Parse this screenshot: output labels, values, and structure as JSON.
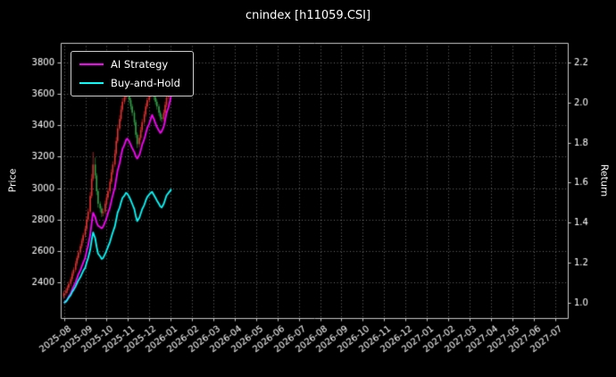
{
  "chart_data": {
    "type": "candlestick",
    "title": "cnindex [h11059.CSI]",
    "ylabel_left": "Price",
    "ylabel_right": "Return",
    "background": "#000000",
    "text_color": "#ffffff",
    "spine_color": "#c8c8c8",
    "grid": {
      "on": true,
      "style": "dotted",
      "color": "rgba(255,255,255,0.42)"
    },
    "legend_position": "upper left",
    "x_axis": {
      "unit": "months since 2025-08",
      "range": [
        -0.15,
        23.6
      ],
      "tick_labels": [
        "2025-08",
        "2025-09",
        "2025-10",
        "2025-11",
        "2025-12",
        "2026-01",
        "2026-02",
        "2026-03",
        "2026-04",
        "2026-05",
        "2026-06",
        "2026-07",
        "2026-08",
        "2026-09",
        "2026-10",
        "2026-11",
        "2026-12",
        "2027-01",
        "2027-02",
        "2027-03",
        "2027-04",
        "2027-05",
        "2027-06",
        "2027-07"
      ]
    },
    "price_axis": {
      "range": [
        2172,
        3925
      ],
      "ticks": [
        2400,
        2600,
        2800,
        3000,
        3200,
        3400,
        3600,
        3800
      ]
    },
    "return_axis": {
      "range": [
        0.924,
        2.298
      ],
      "ticks": [
        1.0,
        1.2,
        1.4,
        1.6,
        1.8,
        2.0,
        2.2
      ]
    },
    "initial_price": 2330,
    "candles": {
      "up_color": "#e03131",
      "down_color": "#2f9e44",
      "dates": [
        "2025-08-01",
        "2025-08-04",
        "2025-08-06",
        "2025-08-08",
        "2025-08-11",
        "2025-08-13",
        "2025-08-15",
        "2025-08-18",
        "2025-08-20",
        "2025-08-22",
        "2025-08-25",
        "2025-08-27",
        "2025-08-29",
        "2025-09-01",
        "2025-09-03",
        "2025-09-05",
        "2025-09-08",
        "2025-09-10",
        "2025-09-12",
        "2025-09-15",
        "2025-09-17",
        "2025-09-19",
        "2025-09-22",
        "2025-09-24",
        "2025-09-26",
        "2025-09-29",
        "2025-10-01",
        "2025-10-03",
        "2025-10-06",
        "2025-10-08",
        "2025-10-10",
        "2025-10-13",
        "2025-10-15",
        "2025-10-17",
        "2025-10-20",
        "2025-10-22",
        "2025-10-24",
        "2025-10-27",
        "2025-10-29",
        "2025-10-31",
        "2025-11-03",
        "2025-11-05",
        "2025-11-07",
        "2025-11-10",
        "2025-11-12",
        "2025-11-14",
        "2025-11-17",
        "2025-11-19",
        "2025-11-21",
        "2025-11-24",
        "2025-11-26",
        "2025-11-28",
        "2025-12-01",
        "2025-12-03",
        "2025-12-05",
        "2025-12-08",
        "2025-12-10",
        "2025-12-12",
        "2025-12-15",
        "2025-12-17",
        "2025-12-19",
        "2025-12-22",
        "2025-12-24",
        "2025-12-26",
        "2025-12-29",
        "2025-12-31",
        "2026-01-02"
      ],
      "ohlc": [
        [
          2310,
          2345,
          2295,
          2330
        ],
        [
          2330,
          2360,
          2315,
          2345
        ],
        [
          2345,
          2380,
          2330,
          2365
        ],
        [
          2365,
          2405,
          2350,
          2390
        ],
        [
          2390,
          2435,
          2375,
          2420
        ],
        [
          2420,
          2470,
          2405,
          2455
        ],
        [
          2455,
          2495,
          2440,
          2480
        ],
        [
          2480,
          2535,
          2465,
          2520
        ],
        [
          2520,
          2570,
          2505,
          2555
        ],
        [
          2555,
          2605,
          2540,
          2590
        ],
        [
          2590,
          2645,
          2575,
          2630
        ],
        [
          2630,
          2680,
          2615,
          2665
        ],
        [
          2665,
          2715,
          2650,
          2700
        ],
        [
          2700,
          2760,
          2685,
          2740
        ],
        [
          2740,
          2820,
          2725,
          2800
        ],
        [
          2800,
          2870,
          2785,
          2850
        ],
        [
          2850,
          2975,
          2835,
          2950
        ],
        [
          2950,
          3090,
          2935,
          3060
        ],
        [
          3060,
          3230,
          3045,
          3150
        ],
        [
          3150,
          3195,
          3060,
          3080
        ],
        [
          3080,
          3095,
          2955,
          2980
        ],
        [
          2980,
          2995,
          2875,
          2900
        ],
        [
          2900,
          2915,
          2845,
          2870
        ],
        [
          2870,
          2885,
          2815,
          2840
        ],
        [
          2840,
          2870,
          2820,
          2850
        ],
        [
          2850,
          2920,
          2835,
          2900
        ],
        [
          2900,
          2960,
          2885,
          2940
        ],
        [
          2940,
          3000,
          2925,
          2980
        ],
        [
          2980,
          3060,
          2965,
          3040
        ],
        [
          3040,
          3120,
          3025,
          3100
        ],
        [
          3100,
          3170,
          3085,
          3150
        ],
        [
          3150,
          3245,
          3135,
          3220
        ],
        [
          3220,
          3325,
          3205,
          3300
        ],
        [
          3300,
          3405,
          3285,
          3380
        ],
        [
          3380,
          3465,
          3365,
          3440
        ],
        [
          3440,
          3525,
          3425,
          3500
        ],
        [
          3500,
          3575,
          3485,
          3550
        ],
        [
          3550,
          3600,
          3535,
          3580
        ],
        [
          3580,
          3640,
          3565,
          3610
        ],
        [
          3610,
          3630,
          3580,
          3600
        ],
        [
          3600,
          3615,
          3540,
          3560
        ],
        [
          3560,
          3575,
          3500,
          3520
        ],
        [
          3520,
          3535,
          3460,
          3480
        ],
        [
          3480,
          3495,
          3400,
          3420
        ],
        [
          3420,
          3435,
          3320,
          3340
        ],
        [
          3340,
          3355,
          3255,
          3280
        ],
        [
          3280,
          3340,
          3260,
          3320
        ],
        [
          3320,
          3390,
          3305,
          3370
        ],
        [
          3370,
          3440,
          3355,
          3420
        ],
        [
          3420,
          3490,
          3405,
          3470
        ],
        [
          3470,
          3540,
          3455,
          3520
        ],
        [
          3520,
          3580,
          3505,
          3560
        ],
        [
          3560,
          3615,
          3545,
          3590
        ],
        [
          3590,
          3635,
          3575,
          3610
        ],
        [
          3610,
          3655,
          3595,
          3620
        ],
        [
          3620,
          3635,
          3560,
          3580
        ],
        [
          3580,
          3595,
          3530,
          3550
        ],
        [
          3550,
          3565,
          3500,
          3520
        ],
        [
          3520,
          3535,
          3460,
          3480
        ],
        [
          3480,
          3495,
          3430,
          3450
        ],
        [
          3450,
          3470,
          3420,
          3440
        ],
        [
          3440,
          3500,
          3425,
          3480
        ],
        [
          3480,
          3550,
          3465,
          3530
        ],
        [
          3530,
          3600,
          3515,
          3580
        ],
        [
          3580,
          3635,
          3565,
          3610
        ],
        [
          3610,
          3660,
          3595,
          3630
        ],
        [
          3630,
          3680,
          3615,
          3650
        ]
      ]
    },
    "series": [
      {
        "name": "AI Strategy",
        "axis": "return",
        "color": "#ff00ff",
        "values": [
          1.0,
          1.008,
          1.018,
          1.032,
          1.048,
          1.066,
          1.082,
          1.102,
          1.122,
          1.142,
          1.163,
          1.182,
          1.2,
          1.225,
          1.258,
          1.285,
          1.34,
          1.4,
          1.45,
          1.428,
          1.4,
          1.385,
          1.378,
          1.372,
          1.38,
          1.405,
          1.425,
          1.448,
          1.478,
          1.51,
          1.538,
          1.575,
          1.618,
          1.66,
          1.698,
          1.735,
          1.768,
          1.79,
          1.812,
          1.82,
          1.805,
          1.788,
          1.772,
          1.752,
          1.732,
          1.72,
          1.738,
          1.762,
          1.79,
          1.818,
          1.845,
          1.872,
          1.895,
          1.918,
          1.938,
          1.915,
          1.895,
          1.878,
          1.86,
          1.848,
          1.856,
          1.88,
          1.912,
          1.948,
          1.978,
          2.008,
          2.038
        ]
      },
      {
        "name": "Buy-and-Hold",
        "axis": "return",
        "color": "#00ffff",
        "values": [
          1.0,
          1.006,
          1.015,
          1.026,
          1.039,
          1.054,
          1.064,
          1.082,
          1.097,
          1.112,
          1.129,
          1.144,
          1.159,
          1.176,
          1.202,
          1.223,
          1.266,
          1.313,
          1.352,
          1.322,
          1.279,
          1.245,
          1.232,
          1.219,
          1.223,
          1.245,
          1.262,
          1.279,
          1.305,
          1.33,
          1.352,
          1.382,
          1.416,
          1.451,
          1.476,
          1.502,
          1.524,
          1.536,
          1.549,
          1.545,
          1.528,
          1.511,
          1.494,
          1.468,
          1.433,
          1.408,
          1.425,
          1.446,
          1.468,
          1.489,
          1.511,
          1.528,
          1.541,
          1.549,
          1.554,
          1.536,
          1.524,
          1.511,
          1.494,
          1.481,
          1.476,
          1.494,
          1.515,
          1.536,
          1.549,
          1.558,
          1.567
        ]
      }
    ]
  }
}
